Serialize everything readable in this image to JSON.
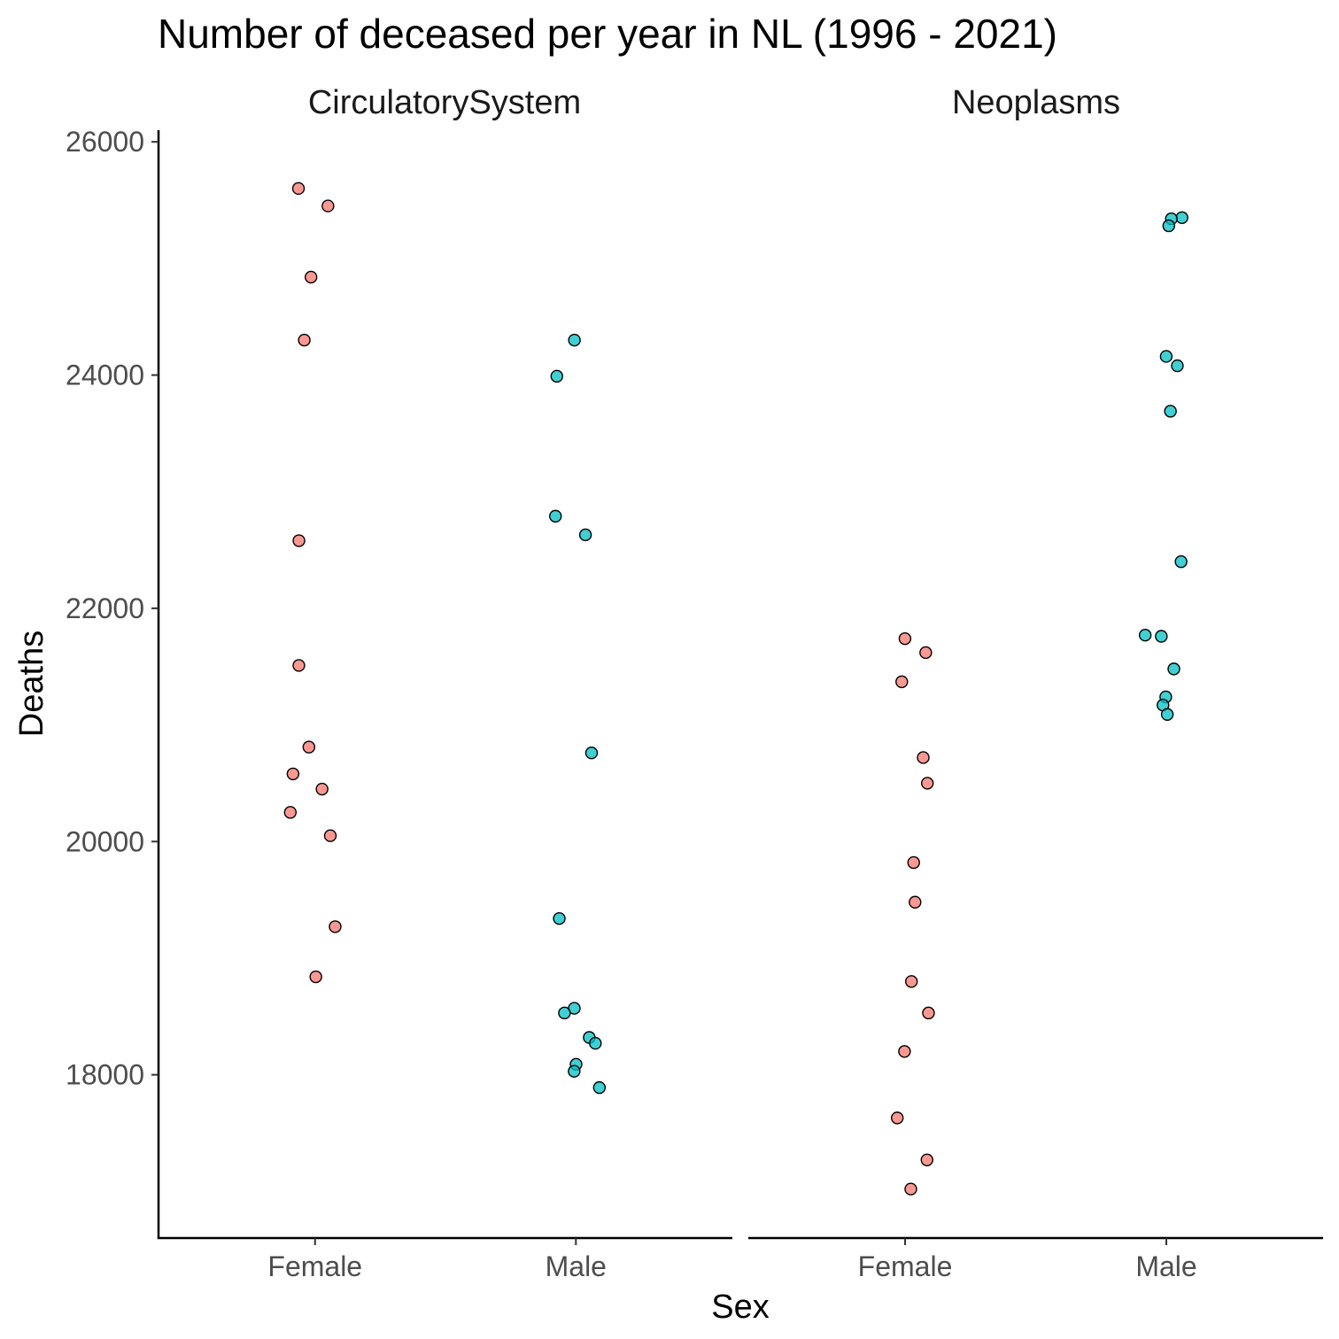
{
  "chart_data": {
    "type": "scatter",
    "title": "Number of deceased per year in NL (1996 - 2021)",
    "xlabel": "Sex",
    "ylabel": "Deaths",
    "categories": [
      "Female",
      "Male"
    ],
    "y_ticks": [
      18000,
      20000,
      22000,
      24000,
      26000
    ],
    "y_tick_labels": [
      "18000",
      "20000",
      "22000",
      "24000",
      "26000"
    ],
    "ylim": [
      16600,
      26100
    ],
    "grid": false,
    "legend": "none",
    "colors": {
      "Female": "#F8766D",
      "Male": "#00BFC4"
    },
    "panels": [
      {
        "name": "CirculatorySystem",
        "series": [
          {
            "category": "Female",
            "values": [
              25600,
              25450,
              24840,
              24300,
              22580,
              21510,
              20810,
              20580,
              20450,
              20250,
              20050,
              19270,
              18840
            ]
          },
          {
            "category": "Male",
            "values": [
              24300,
              23990,
              22790,
              22630,
              20760,
              19340,
              18570,
              18530,
              18320,
              18270,
              18090,
              18030,
              17890
            ]
          }
        ]
      },
      {
        "name": "Neoplasms",
        "series": [
          {
            "category": "Female",
            "values": [
              21740,
              21620,
              21370,
              20720,
              20500,
              19820,
              19480,
              18800,
              18530,
              18200,
              17630,
              17270,
              17020
            ]
          },
          {
            "category": "Male",
            "values": [
              25350,
              25340,
              25280,
              24160,
              24080,
              23690,
              22400,
              21770,
              21760,
              21480,
              21240,
              21170,
              21090
            ]
          }
        ]
      }
    ]
  }
}
